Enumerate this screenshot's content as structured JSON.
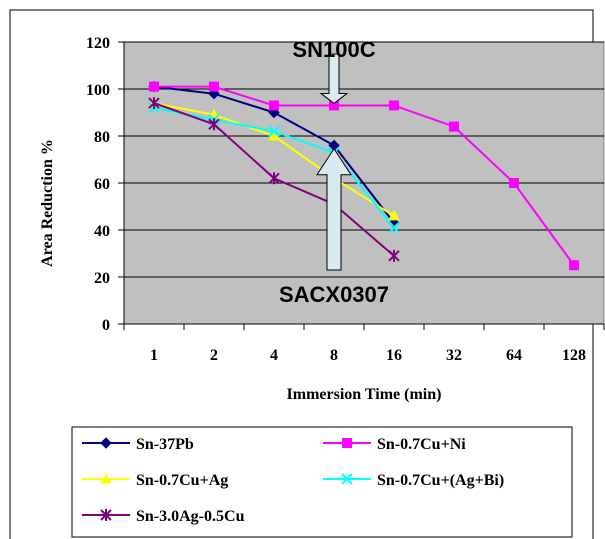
{
  "chart_data": {
    "type": "line",
    "title": "",
    "xlabel": "Immersion Time (min)",
    "ylabel": "Area Reduction %",
    "categories": [
      "1",
      "2",
      "4",
      "8",
      "16",
      "32",
      "64",
      "128"
    ],
    "ylim": [
      0,
      120
    ],
    "yticks": [
      "0",
      "20",
      "40",
      "60",
      "80",
      "100",
      "120"
    ],
    "grid": true,
    "plot_background": "#c0c0c0",
    "legend_position": "bottom",
    "series": [
      {
        "name": "Sn-37Pb",
        "color": "#000080",
        "marker": "diamond",
        "values": [
          101,
          98,
          90,
          76,
          43,
          null,
          null,
          null
        ]
      },
      {
        "name": "Sn-0.7Cu+Ni",
        "color": "#ff00ff",
        "marker": "square",
        "values": [
          101,
          101,
          93,
          93,
          93,
          84,
          60,
          25
        ]
      },
      {
        "name": "Sn-0.7Cu+Ag",
        "color": "#ffff00",
        "marker": "triangle",
        "values": [
          94,
          89,
          80,
          62,
          46,
          null,
          null,
          null
        ]
      },
      {
        "name": "Sn-0.7Cu+(Ag+Bi)",
        "color": "#00ffff",
        "marker": "x",
        "values": [
          92,
          87,
          82,
          73,
          41,
          null,
          null,
          null
        ]
      },
      {
        "name": "Sn-3.0Ag-0.5Cu",
        "color": "#800080",
        "marker": "star",
        "values": [
          94,
          85,
          62,
          51,
          29,
          null,
          null,
          null
        ]
      }
    ],
    "annotations": [
      {
        "text": "SN100C",
        "arrow": "down",
        "target_category": "8",
        "target_value": 93
      },
      {
        "text": "SACX0307",
        "arrow": "up",
        "target_category": "8",
        "target_value": 75
      }
    ]
  }
}
